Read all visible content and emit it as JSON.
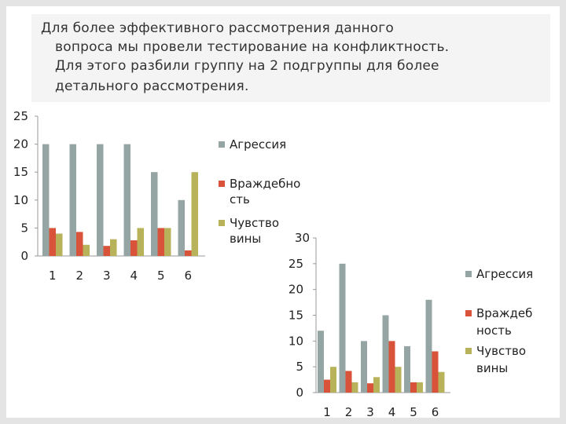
{
  "intro": {
    "lines": [
      "Для более эффективного рассмотрения данного",
      "вопроса мы провели тестирование на конфликтность.",
      "Для этого разбили группу на 2 подгруппы для более",
      "детального рассмотрения."
    ]
  },
  "colors": {
    "series": [
      "#95a5a4",
      "#d9533a",
      "#b8b35a"
    ],
    "axis": "#999999"
  },
  "chart_data": [
    {
      "type": "bar",
      "categories": [
        "1",
        "2",
        "3",
        "4",
        "5",
        "6"
      ],
      "ylim": [
        0,
        25
      ],
      "yticks": [
        "0",
        "5",
        "10",
        "15",
        "20",
        "25"
      ],
      "series": [
        {
          "name": "Агрессия",
          "legend_lines": [
            "Агрессия"
          ],
          "values": [
            20,
            20,
            20,
            20,
            15,
            10
          ]
        },
        {
          "name": "Враждебность",
          "legend_lines": [
            "Враждебно",
            "сть"
          ],
          "values": [
            5,
            4.3,
            1.8,
            2.8,
            5,
            1
          ]
        },
        {
          "name": "Чувство вины",
          "legend_lines": [
            "Чувство",
            "вины"
          ],
          "values": [
            4,
            2,
            3,
            5,
            5,
            15
          ]
        }
      ]
    },
    {
      "type": "bar",
      "categories": [
        "1",
        "2",
        "3",
        "4",
        "5",
        "6"
      ],
      "ylim": [
        0,
        30
      ],
      "yticks": [
        "0",
        "5",
        "10",
        "15",
        "20",
        "25",
        "30"
      ],
      "series": [
        {
          "name": "Агрессия",
          "legend_lines": [
            "Агрессия"
          ],
          "values": [
            12,
            25,
            10,
            15,
            9,
            18
          ]
        },
        {
          "name": "Враждебность",
          "legend_lines": [
            "Враждеб",
            "ность"
          ],
          "values": [
            2.5,
            4.2,
            1.8,
            10,
            2,
            8
          ]
        },
        {
          "name": "Чувство вины",
          "legend_lines": [
            "Чувство",
            "вины"
          ],
          "values": [
            5,
            2,
            3,
            5,
            2,
            4
          ]
        }
      ]
    }
  ]
}
